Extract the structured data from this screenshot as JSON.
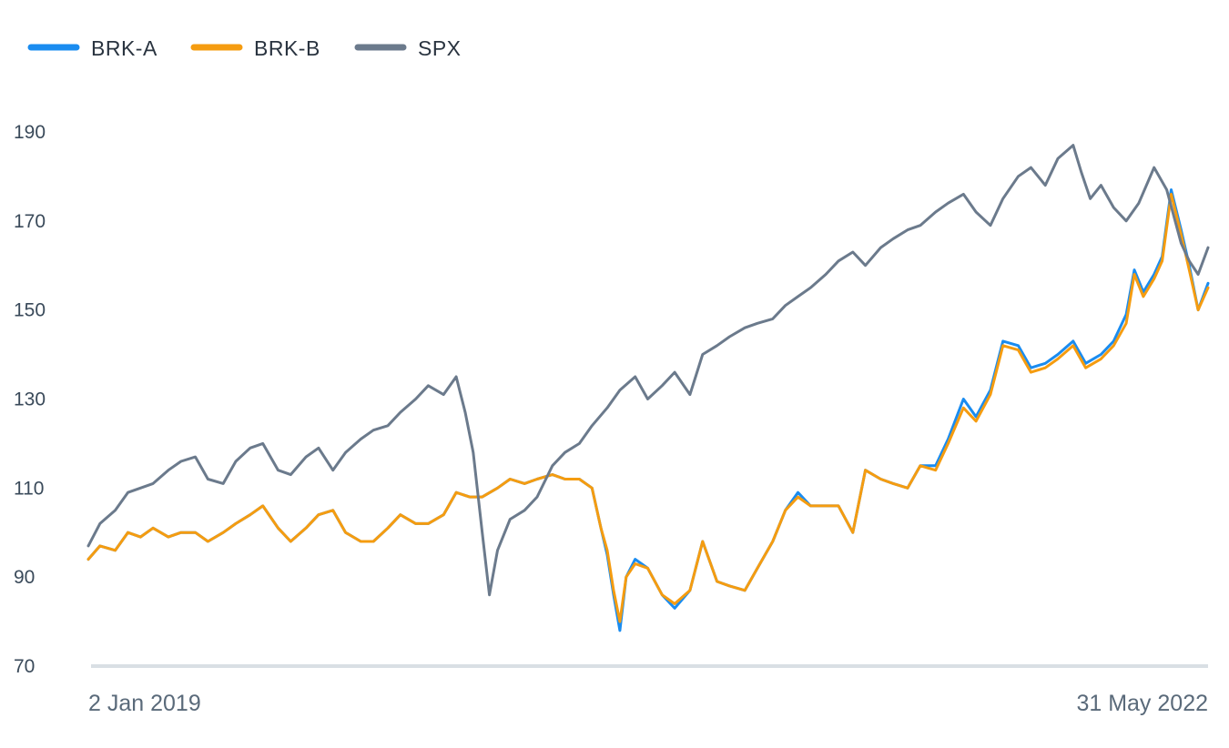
{
  "chart_data": {
    "type": "line",
    "title": "",
    "xlabel": "",
    "ylabel": "",
    "x_tick_labels": [
      "2 Jan 2019",
      "31 May 2022"
    ],
    "x_range": [
      "2019-01-02",
      "2022-05-31"
    ],
    "y_ticks": [
      70,
      90,
      110,
      130,
      150,
      170,
      190
    ],
    "ylim": [
      70,
      200
    ],
    "grid": false,
    "legend": "top-left",
    "series": [
      {
        "name": "BRK-A",
        "color": "#1a8cf0",
        "points": [
          [
            "2019-01-02",
            94
          ],
          [
            "2019-01-15",
            97
          ],
          [
            "2019-02-01",
            96
          ],
          [
            "2019-02-15",
            100
          ],
          [
            "2019-03-01",
            99
          ],
          [
            "2019-03-15",
            101
          ],
          [
            "2019-04-01",
            99
          ],
          [
            "2019-04-15",
            100
          ],
          [
            "2019-05-01",
            100
          ],
          [
            "2019-05-15",
            98
          ],
          [
            "2019-06-01",
            100
          ],
          [
            "2019-06-15",
            102
          ],
          [
            "2019-07-01",
            104
          ],
          [
            "2019-07-15",
            106
          ],
          [
            "2019-08-01",
            101
          ],
          [
            "2019-08-15",
            98
          ],
          [
            "2019-09-01",
            101
          ],
          [
            "2019-09-15",
            104
          ],
          [
            "2019-10-01",
            105
          ],
          [
            "2019-10-15",
            100
          ],
          [
            "2019-11-01",
            98
          ],
          [
            "2019-11-15",
            98
          ],
          [
            "2019-12-01",
            101
          ],
          [
            "2019-12-15",
            104
          ],
          [
            "2020-01-01",
            102
          ],
          [
            "2020-01-15",
            102
          ],
          [
            "2020-02-01",
            104
          ],
          [
            "2020-02-15",
            109
          ],
          [
            "2020-03-01",
            108
          ],
          [
            "2020-03-15",
            108
          ],
          [
            "2020-04-01",
            110
          ],
          [
            "2020-04-15",
            112
          ],
          [
            "2020-05-01",
            111
          ],
          [
            "2020-05-15",
            112
          ],
          [
            "2020-06-01",
            113
          ],
          [
            "2020-06-15",
            112
          ],
          [
            "2020-07-01",
            112
          ],
          [
            "2020-07-15",
            110
          ],
          [
            "2020-07-25",
            101
          ],
          [
            "2020-08-01",
            95
          ],
          [
            "2020-08-08",
            86
          ],
          [
            "2020-08-15",
            78
          ],
          [
            "2020-08-22",
            90
          ],
          [
            "2020-09-01",
            94
          ],
          [
            "2020-09-15",
            92
          ],
          [
            "2020-10-01",
            86
          ],
          [
            "2020-10-15",
            83
          ],
          [
            "2020-11-01",
            87
          ],
          [
            "2020-11-15",
            98
          ],
          [
            "2020-12-01",
            89
          ],
          [
            "2020-12-15",
            88
          ],
          [
            "2021-01-01",
            87
          ],
          [
            "2021-01-15",
            92
          ],
          [
            "2021-02-01",
            98
          ],
          [
            "2021-02-15",
            105
          ],
          [
            "2021-03-01",
            109
          ],
          [
            "2021-03-15",
            106
          ],
          [
            "2021-04-01",
            106
          ],
          [
            "2021-04-15",
            106
          ],
          [
            "2021-05-01",
            100
          ],
          [
            "2021-05-15",
            114
          ],
          [
            "2021-06-01",
            112
          ],
          [
            "2021-06-15",
            111
          ],
          [
            "2021-07-01",
            110
          ],
          [
            "2021-07-15",
            115
          ],
          [
            "2021-08-01",
            115
          ],
          [
            "2021-08-15",
            121
          ],
          [
            "2021-09-01",
            130
          ],
          [
            "2021-09-15",
            126
          ],
          [
            "2021-10-01",
            132
          ],
          [
            "2021-10-15",
            143
          ],
          [
            "2021-11-01",
            142
          ],
          [
            "2021-11-15",
            137
          ],
          [
            "2021-12-01",
            138
          ],
          [
            "2021-12-15",
            140
          ],
          [
            "2022-01-01",
            143
          ],
          [
            "2022-01-15",
            138
          ],
          [
            "2022-02-01",
            140
          ],
          [
            "2022-02-15",
            143
          ],
          [
            "2022-03-01",
            149
          ],
          [
            "2022-03-10",
            159
          ],
          [
            "2022-03-20",
            154
          ],
          [
            "2022-04-01",
            158
          ],
          [
            "2022-04-10",
            162
          ],
          [
            "2022-04-20",
            177
          ],
          [
            "2022-05-01",
            168
          ],
          [
            "2022-05-10",
            160
          ],
          [
            "2022-05-20",
            150
          ],
          [
            "2022-05-31",
            156
          ]
        ]
      },
      {
        "name": "BRK-B",
        "color": "#f59c10",
        "points": [
          [
            "2019-01-02",
            94
          ],
          [
            "2019-01-15",
            97
          ],
          [
            "2019-02-01",
            96
          ],
          [
            "2019-02-15",
            100
          ],
          [
            "2019-03-01",
            99
          ],
          [
            "2019-03-15",
            101
          ],
          [
            "2019-04-01",
            99
          ],
          [
            "2019-04-15",
            100
          ],
          [
            "2019-05-01",
            100
          ],
          [
            "2019-05-15",
            98
          ],
          [
            "2019-06-01",
            100
          ],
          [
            "2019-06-15",
            102
          ],
          [
            "2019-07-01",
            104
          ],
          [
            "2019-07-15",
            106
          ],
          [
            "2019-08-01",
            101
          ],
          [
            "2019-08-15",
            98
          ],
          [
            "2019-09-01",
            101
          ],
          [
            "2019-09-15",
            104
          ],
          [
            "2019-10-01",
            105
          ],
          [
            "2019-10-15",
            100
          ],
          [
            "2019-11-01",
            98
          ],
          [
            "2019-11-15",
            98
          ],
          [
            "2019-12-01",
            101
          ],
          [
            "2019-12-15",
            104
          ],
          [
            "2020-01-01",
            102
          ],
          [
            "2020-01-15",
            102
          ],
          [
            "2020-02-01",
            104
          ],
          [
            "2020-02-15",
            109
          ],
          [
            "2020-03-01",
            108
          ],
          [
            "2020-03-15",
            108
          ],
          [
            "2020-04-01",
            110
          ],
          [
            "2020-04-15",
            112
          ],
          [
            "2020-05-01",
            111
          ],
          [
            "2020-05-15",
            112
          ],
          [
            "2020-06-01",
            113
          ],
          [
            "2020-06-15",
            112
          ],
          [
            "2020-07-01",
            112
          ],
          [
            "2020-07-15",
            110
          ],
          [
            "2020-07-25",
            101
          ],
          [
            "2020-08-01",
            96
          ],
          [
            "2020-08-08",
            87
          ],
          [
            "2020-08-15",
            80
          ],
          [
            "2020-08-22",
            90
          ],
          [
            "2020-09-01",
            93
          ],
          [
            "2020-09-15",
            92
          ],
          [
            "2020-10-01",
            86
          ],
          [
            "2020-10-15",
            84
          ],
          [
            "2020-11-01",
            87
          ],
          [
            "2020-11-15",
            98
          ],
          [
            "2020-12-01",
            89
          ],
          [
            "2020-12-15",
            88
          ],
          [
            "2021-01-01",
            87
          ],
          [
            "2021-01-15",
            92
          ],
          [
            "2021-02-01",
            98
          ],
          [
            "2021-02-15",
            105
          ],
          [
            "2021-03-01",
            108
          ],
          [
            "2021-03-15",
            106
          ],
          [
            "2021-04-01",
            106
          ],
          [
            "2021-04-15",
            106
          ],
          [
            "2021-05-01",
            100
          ],
          [
            "2021-05-15",
            114
          ],
          [
            "2021-06-01",
            112
          ],
          [
            "2021-06-15",
            111
          ],
          [
            "2021-07-01",
            110
          ],
          [
            "2021-07-15",
            115
          ],
          [
            "2021-08-01",
            114
          ],
          [
            "2021-08-15",
            120
          ],
          [
            "2021-09-01",
            128
          ],
          [
            "2021-09-15",
            125
          ],
          [
            "2021-10-01",
            131
          ],
          [
            "2021-10-15",
            142
          ],
          [
            "2021-11-01",
            141
          ],
          [
            "2021-11-15",
            136
          ],
          [
            "2021-12-01",
            137
          ],
          [
            "2021-12-15",
            139
          ],
          [
            "2022-01-01",
            142
          ],
          [
            "2022-01-15",
            137
          ],
          [
            "2022-02-01",
            139
          ],
          [
            "2022-02-15",
            142
          ],
          [
            "2022-03-01",
            147
          ],
          [
            "2022-03-10",
            158
          ],
          [
            "2022-03-20",
            153
          ],
          [
            "2022-04-01",
            157
          ],
          [
            "2022-04-10",
            161
          ],
          [
            "2022-04-20",
            176
          ],
          [
            "2022-05-01",
            167
          ],
          [
            "2022-05-10",
            159
          ],
          [
            "2022-05-20",
            150
          ],
          [
            "2022-05-31",
            155
          ]
        ]
      },
      {
        "name": "SPX",
        "color": "#6b7a8c",
        "points": [
          [
            "2019-01-02",
            97
          ],
          [
            "2019-01-15",
            102
          ],
          [
            "2019-02-01",
            105
          ],
          [
            "2019-02-15",
            109
          ],
          [
            "2019-03-01",
            110
          ],
          [
            "2019-03-15",
            111
          ],
          [
            "2019-04-01",
            114
          ],
          [
            "2019-04-15",
            116
          ],
          [
            "2019-05-01",
            117
          ],
          [
            "2019-05-15",
            112
          ],
          [
            "2019-06-01",
            111
          ],
          [
            "2019-06-15",
            116
          ],
          [
            "2019-07-01",
            119
          ],
          [
            "2019-07-15",
            120
          ],
          [
            "2019-08-01",
            114
          ],
          [
            "2019-08-15",
            113
          ],
          [
            "2019-09-01",
            117
          ],
          [
            "2019-09-15",
            119
          ],
          [
            "2019-10-01",
            114
          ],
          [
            "2019-10-15",
            118
          ],
          [
            "2019-11-01",
            121
          ],
          [
            "2019-11-15",
            123
          ],
          [
            "2019-12-01",
            124
          ],
          [
            "2019-12-15",
            127
          ],
          [
            "2020-01-01",
            130
          ],
          [
            "2020-01-15",
            133
          ],
          [
            "2020-02-01",
            131
          ],
          [
            "2020-02-15",
            135
          ],
          [
            "2020-02-25",
            127
          ],
          [
            "2020-03-05",
            118
          ],
          [
            "2020-03-15",
            100
          ],
          [
            "2020-03-23",
            86
          ],
          [
            "2020-04-01",
            96
          ],
          [
            "2020-04-15",
            103
          ],
          [
            "2020-05-01",
            105
          ],
          [
            "2020-05-15",
            108
          ],
          [
            "2020-06-01",
            115
          ],
          [
            "2020-06-15",
            118
          ],
          [
            "2020-07-01",
            120
          ],
          [
            "2020-07-15",
            124
          ],
          [
            "2020-08-01",
            128
          ],
          [
            "2020-08-15",
            132
          ],
          [
            "2020-09-01",
            135
          ],
          [
            "2020-09-15",
            130
          ],
          [
            "2020-10-01",
            133
          ],
          [
            "2020-10-15",
            136
          ],
          [
            "2020-11-01",
            131
          ],
          [
            "2020-11-15",
            140
          ],
          [
            "2020-12-01",
            142
          ],
          [
            "2020-12-15",
            144
          ],
          [
            "2021-01-01",
            146
          ],
          [
            "2021-01-15",
            147
          ],
          [
            "2021-02-01",
            148
          ],
          [
            "2021-02-15",
            151
          ],
          [
            "2021-03-01",
            153
          ],
          [
            "2021-03-15",
            155
          ],
          [
            "2021-04-01",
            158
          ],
          [
            "2021-04-15",
            161
          ],
          [
            "2021-05-01",
            163
          ],
          [
            "2021-05-15",
            160
          ],
          [
            "2021-06-01",
            164
          ],
          [
            "2021-06-15",
            166
          ],
          [
            "2021-07-01",
            168
          ],
          [
            "2021-07-15",
            169
          ],
          [
            "2021-08-01",
            172
          ],
          [
            "2021-08-15",
            174
          ],
          [
            "2021-09-01",
            176
          ],
          [
            "2021-09-15",
            172
          ],
          [
            "2021-10-01",
            169
          ],
          [
            "2021-10-15",
            175
          ],
          [
            "2021-11-01",
            180
          ],
          [
            "2021-11-15",
            182
          ],
          [
            "2021-12-01",
            178
          ],
          [
            "2021-12-15",
            184
          ],
          [
            "2022-01-01",
            187
          ],
          [
            "2022-01-10",
            181
          ],
          [
            "2022-01-20",
            175
          ],
          [
            "2022-02-01",
            178
          ],
          [
            "2022-02-15",
            173
          ],
          [
            "2022-03-01",
            170
          ],
          [
            "2022-03-15",
            174
          ],
          [
            "2022-04-01",
            182
          ],
          [
            "2022-04-15",
            177
          ],
          [
            "2022-05-01",
            165
          ],
          [
            "2022-05-10",
            161
          ],
          [
            "2022-05-20",
            158
          ],
          [
            "2022-05-31",
            164
          ]
        ]
      }
    ]
  }
}
